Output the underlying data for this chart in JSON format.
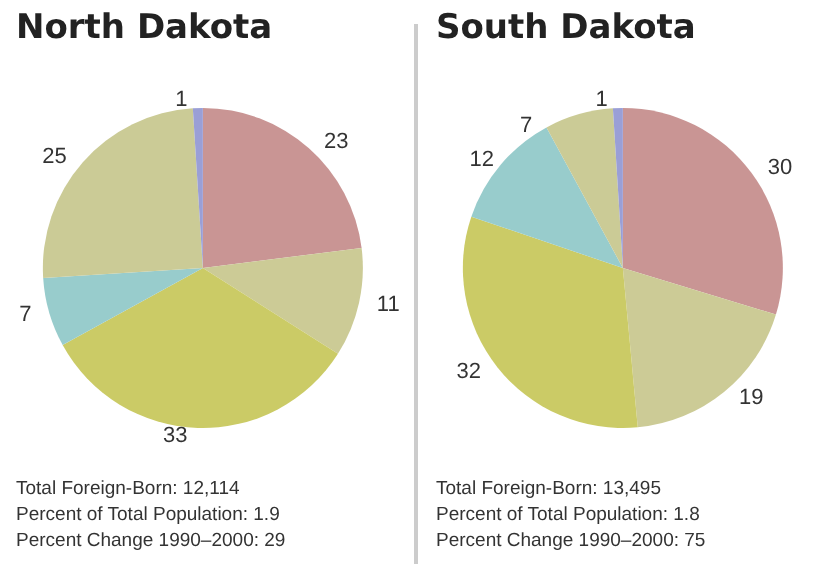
{
  "chart_data": [
    {
      "type": "pie",
      "title": "North Dakota",
      "categories": [
        null,
        null,
        null,
        null,
        null,
        null
      ],
      "values": [
        23,
        11,
        33,
        7,
        25,
        1
      ],
      "colors": [
        "#c99594",
        "#cccb96",
        "#cbcb66",
        "#98cccc",
        "#cbcb96",
        "#9a9fd6"
      ],
      "data_labels": true,
      "annotations": [
        "Total Foreign-Born: 12,114",
        "Percent of Total Population: 1.9",
        "Percent Change 1990–2000: 29"
      ]
    },
    {
      "type": "pie",
      "title": "South Dakota",
      "categories": [
        null,
        null,
        null,
        null,
        null,
        null
      ],
      "values": [
        30,
        19,
        32,
        12,
        7,
        1
      ],
      "colors": [
        "#c99594",
        "#cccb96",
        "#cbcb66",
        "#98cccc",
        "#cbcb96",
        "#9a9fd6"
      ],
      "data_labels": true,
      "annotations": [
        "Total Foreign-Born: 13,495",
        "Percent of Total Population: 1.8",
        "Percent Change 1990–2000: 75"
      ]
    }
  ]
}
